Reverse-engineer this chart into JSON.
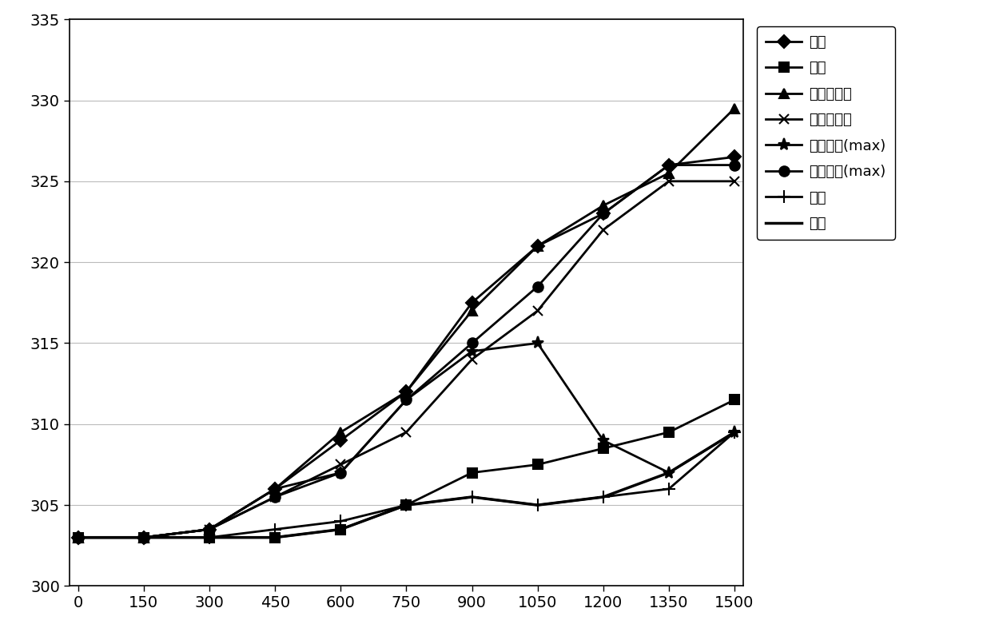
{
  "x": [
    0,
    150,
    300,
    450,
    600,
    750,
    900,
    1050,
    1200,
    1350,
    1500
  ],
  "series": {
    "顶面": [
      303,
      303,
      303.5,
      306,
      309,
      312,
      317.5,
      321,
      323,
      326,
      326.5
    ],
    "底面": [
      303,
      303,
      303,
      303,
      303.5,
      305,
      307,
      307.5,
      308.5,
      309.5,
      311.5
    ],
    "水平换热面": [
      303,
      303,
      303.5,
      306,
      309.5,
      312,
      317,
      321,
      323.5,
      325.5,
      329.5
    ],
    "垂直换热面": [
      303,
      303,
      303.5,
      305.5,
      307.5,
      309.5,
      314,
      317,
      322,
      325,
      325
    ],
    "第一设备(max)": [
      303,
      303,
      303.5,
      306,
      307,
      311.5,
      314.5,
      315,
      309,
      307,
      309.5
    ],
    "第二设备(max)": [
      303,
      303,
      303.5,
      305.5,
      307,
      311.5,
      315,
      318.5,
      323,
      326,
      326
    ],
    "燃油": [
      303,
      303,
      303,
      303.5,
      304,
      305,
      305.5,
      305,
      305.5,
      306,
      309.5
    ],
    "空气": [
      303,
      303,
      303,
      303,
      303.5,
      305,
      305.5,
      305,
      305.5,
      307,
      309.5
    ]
  },
  "markers": {
    "顶面": "D",
    "底面": "s",
    "水平换热面": "^",
    "垂直换热面": "x",
    "第一设备(max)": "*",
    "第二设备(max)": "o",
    "燃油": "+",
    "空气": "none"
  },
  "marker_sizes": {
    "顶面": 8,
    "底面": 8,
    "水平换热面": 9,
    "垂直换热面": 9,
    "第一设备(max)": 11,
    "第二设备(max)": 9,
    "燃油": 11,
    "空气": 0
  },
  "line_widths": {
    "顶面": 2.0,
    "底面": 2.0,
    "水平换热面": 2.0,
    "垂直换热面": 2.0,
    "第一设备(max)": 2.0,
    "第二设备(max)": 2.0,
    "燃油": 2.0,
    "空气": 2.5
  },
  "ylim": [
    300,
    335
  ],
  "yticks": [
    300,
    305,
    310,
    315,
    320,
    325,
    330,
    335
  ],
  "xticks": [
    0,
    150,
    300,
    450,
    600,
    750,
    900,
    1050,
    1200,
    1350,
    1500
  ],
  "background_color": "#ffffff",
  "grid_color": "#bbbbbb",
  "legend_labels": [
    "顶面",
    "底面",
    "水平换热面",
    "垂直换热面",
    "第一设备(max)",
    "第二设备(max)",
    "燃油",
    "空气"
  ]
}
